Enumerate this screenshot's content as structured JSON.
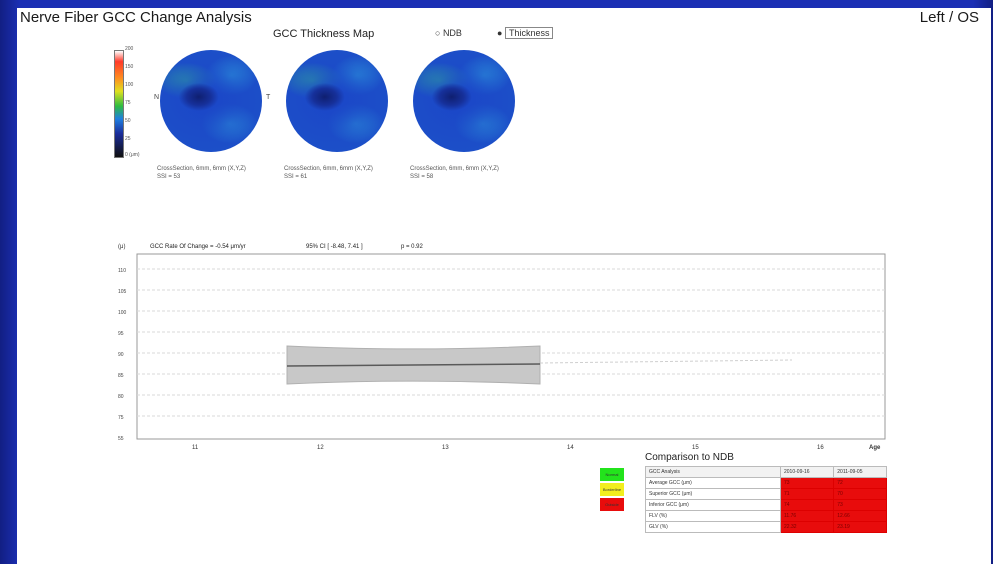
{
  "window": {
    "title": "Nerve Fiber GCC Change Analysis",
    "eye": "Left / OS"
  },
  "thickness_map": {
    "title": "GCC Thickness Map",
    "options": [
      "NDB",
      "Thickness"
    ],
    "colorbar_ticks": [
      "200",
      "150",
      "100",
      "75",
      "50",
      "25",
      "0 (μm)"
    ],
    "markers": [
      "N",
      "T"
    ],
    "maps": [
      {
        "caption": "CrossSection, 6mm, 6mm (X,Y,Z)",
        "subcaption": "SSI = 53"
      },
      {
        "caption": "CrossSection, 6mm, 6mm (X,Y,Z)",
        "subcaption": "SSI = 61"
      },
      {
        "caption": "CrossSection, 6mm, 6mm (X,Y,Z)",
        "subcaption": "SSI = 58"
      }
    ]
  },
  "trend": {
    "ylabel": "(μ)",
    "header": "GCC Rate Of Change = -0.54 μm/yr",
    "ci": "95% CI [ -8.48, 7.41 ]",
    "p": "p = 0.92",
    "xlabel": "Age",
    "y_ticks": [
      "110",
      "105",
      "100",
      "95",
      "90",
      "85",
      "80",
      "75",
      "70",
      "65",
      "60",
      "55"
    ],
    "x_ticks": [
      "11",
      "12",
      "13",
      "14",
      "15",
      "16"
    ]
  },
  "ndb": {
    "title": "Comparison to NDB",
    "legend": [
      {
        "label": "Normal",
        "color": "#23e31c"
      },
      {
        "label": "Borderline",
        "color": "#f2ee1e"
      },
      {
        "label": "Outside",
        "color": "#e80c0c"
      }
    ],
    "headers": [
      "GCC Analysis",
      "2010-09-16",
      "2011-09-05"
    ],
    "rows": [
      [
        "Average GCC (μm)",
        "73",
        "72"
      ],
      [
        "Superior GCC (μm)",
        "71",
        "70"
      ],
      [
        "Inferior GCC (μm)",
        "74",
        "73"
      ],
      [
        "FLV (%)",
        "11.76",
        "12.66"
      ],
      [
        "GLV (%)",
        "22.32",
        "23.19"
      ]
    ]
  }
}
